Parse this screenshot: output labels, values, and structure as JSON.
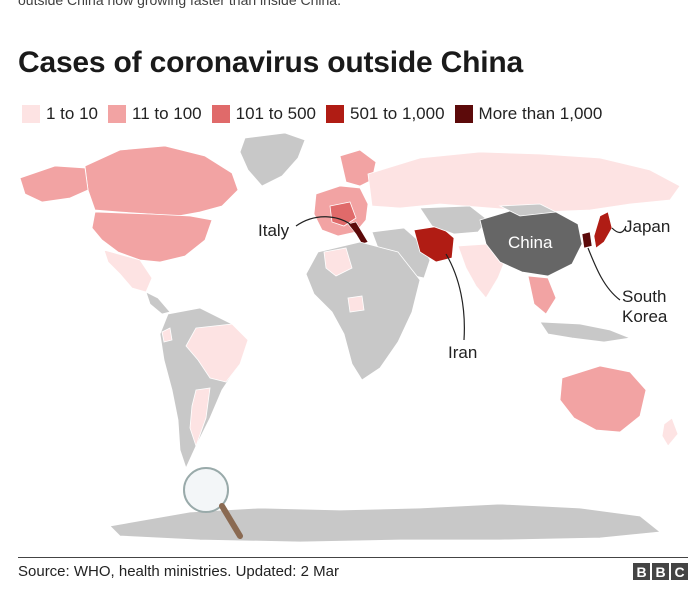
{
  "header": {
    "top_text": "outside China now growing faster than inside China.",
    "title": "Cases of coronavirus outside China"
  },
  "legend": [
    {
      "label": "1 to 10",
      "color": "#fde3e3"
    },
    {
      "label": "11 to 100",
      "color": "#f2a3a3"
    },
    {
      "label": "101 to 500",
      "color": "#e06a6a"
    },
    {
      "label": "501 to 1,000",
      "color": "#b01c14"
    },
    {
      "label": "More than 1,000",
      "color": "#5c0a0a"
    }
  ],
  "colors": {
    "no_data": "#c8c8c8",
    "china": "#666666",
    "ocean": "#ffffff"
  },
  "map_labels": {
    "italy": "Italy",
    "china": "China",
    "japan": "Japan",
    "south_korea_1": "South",
    "south_korea_2": "Korea",
    "iran": "Iran"
  },
  "footer": {
    "source": "Source: WHO, health ministries. Updated: 2 Mar",
    "logo": [
      "B",
      "B",
      "C"
    ]
  }
}
